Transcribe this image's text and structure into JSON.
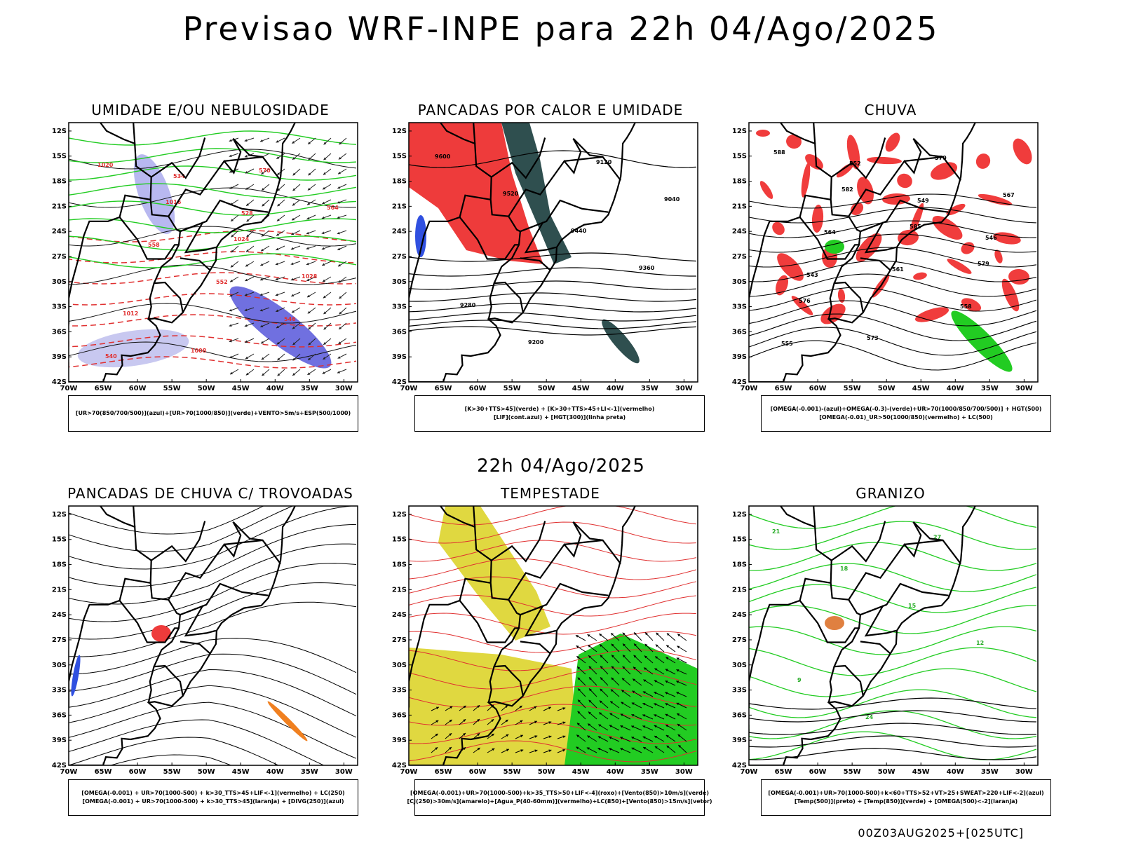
{
  "header": {
    "title": "Previsao WRF-INPE  para 22h 04/Ago/2025",
    "mid_title": "22h 04/Ago/2025",
    "run_stamp": "00Z03AUG2025+[025UTC]"
  },
  "axes": {
    "lat_labels": [
      "12S",
      "15S",
      "18S",
      "21S",
      "24S",
      "27S",
      "30S",
      "33S",
      "36S",
      "39S",
      "42S"
    ],
    "lon_labels": [
      "70W",
      "65W",
      "60W",
      "55W",
      "50W",
      "45W",
      "40W",
      "35W",
      "30W"
    ]
  },
  "panels": [
    {
      "id": "umidade",
      "title": "UMIDADE E/OU NEBULOSIDADE",
      "legend": [
        "[UR>70(850/700/500)](azul)+[UR>70(1000/850)](verde)+VENTO>5m/s+ESP(500/1000)"
      ],
      "contour_labels": [
        "1020",
        "1016",
        "1024",
        "1028",
        "1012",
        "1008",
        "570",
        "564",
        "558",
        "552",
        "546",
        "540",
        "534",
        "528"
      ]
    },
    {
      "id": "pancadas-calor",
      "title": "PANCADAS POR CALOR E UMIDADE",
      "legend": [
        "[K>30+TTS>45](verde) + [K>30+TTS>45+LI<-1](vermelho)",
        "[LIF](cont.azul) + [HGT(300)](linha preta)"
      ],
      "contour_labels": [
        "9600",
        "9520",
        "9440",
        "9360",
        "9280",
        "9200",
        "9120",
        "9040"
      ]
    },
    {
      "id": "chuva",
      "title": "CHUVA",
      "legend": [
        "[OMEGA(-0.001)-(azul)+OMEGA(-0.3)-(verde)+UR>70(1000/850/700/500)] + HGT(500)",
        "[OMEGA(-0.01)_UR>50(1000/850)(vermelho) + LC(500)"
      ],
      "contour_labels": [
        "588",
        "582",
        "585",
        "579",
        "576",
        "573",
        "570",
        "567",
        "564",
        "561",
        "558",
        "555",
        "552",
        "549",
        "546",
        "543"
      ]
    },
    {
      "id": "pancadas-trovoadas",
      "title": "PANCADAS DE CHUVA C/ TROVOADAS",
      "legend": [
        "[OMEGA(-0.001) + UR>70(1000-500) + k>30_TTS>45+LIF<-1](vermelho) + LC(250)",
        "[OMEGA(-0.001) + UR>70(1000-500) + k>30_TTS>45](laranja) + [DIVG(250)](azul)"
      ],
      "contour_labels": []
    },
    {
      "id": "tempestade",
      "title": "TEMPESTADE",
      "legend": [
        "[OMEGA(-0.001)+UR>70(1000-500)+k>35_TTS>50+LIF<-4](roxo)+[Vento(850)>10m/s](verde)",
        "[CJ(250)>30m/s](amarelo)+[Agua_P(40-60mm)](vermelho)+LC(850)+[Vento(850)>15m/s](vetor)"
      ],
      "contour_labels": []
    },
    {
      "id": "granizo",
      "title": "GRANIZO",
      "legend": [
        "[OMEGA(-0.001)+UR>70(1000-500)+k<60+TTS>52+VT>25+SWEAT>220+LIF<-2](azul)",
        "[Temp(500)](preto) + [Temp(850)](verde) + [OMEGA(500)<-2](laranja)"
      ],
      "contour_labels": [
        "21",
        "18",
        "15",
        "12",
        "9",
        "24",
        "27"
      ]
    }
  ]
}
